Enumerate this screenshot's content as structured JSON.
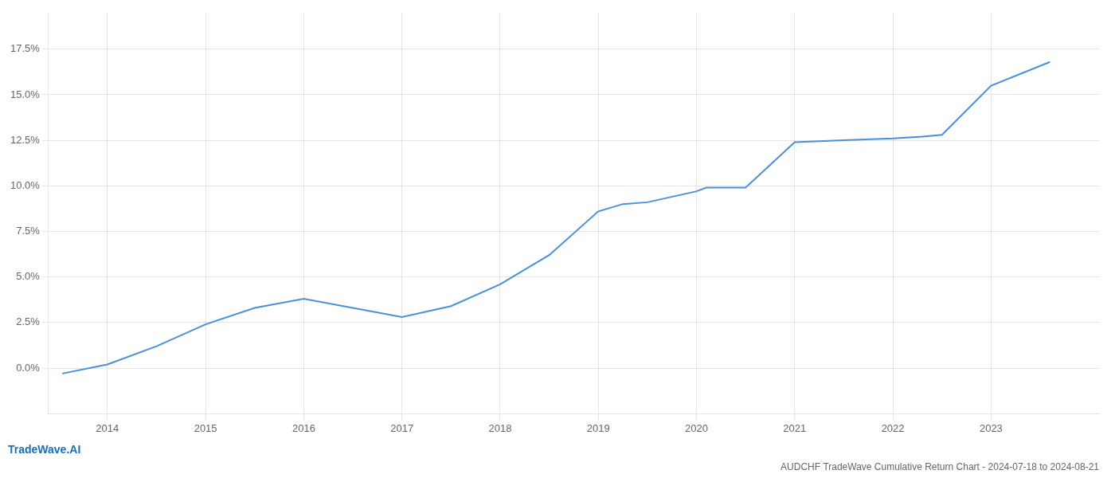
{
  "chart_data": {
    "type": "line",
    "title": "AUDCHF TradeWave Cumulative Return Chart - 2024-07-18 to 2024-08-21",
    "annotations": [
      "TradeWave.AI"
    ],
    "x": [
      2013.54,
      2014.0,
      2014.5,
      2015.0,
      2015.5,
      2016.0,
      2016.5,
      2017.0,
      2017.5,
      2018.0,
      2018.5,
      2019.0,
      2019.25,
      2019.5,
      2020.0,
      2020.1,
      2020.5,
      2021.0,
      2021.5,
      2022.0,
      2022.3,
      2022.5,
      2023.0,
      2023.6
    ],
    "values": [
      -0.003,
      0.002,
      0.012,
      0.024,
      0.033,
      0.038,
      0.033,
      0.028,
      0.034,
      0.046,
      0.062,
      0.086,
      0.09,
      0.091,
      0.097,
      0.099,
      0.099,
      0.124,
      0.125,
      0.126,
      0.127,
      0.128,
      0.155,
      0.168
    ],
    "color": "#4a90d9",
    "xlim": [
      2013.4,
      2024.1
    ],
    "ylim": [
      -0.025,
      0.195
    ],
    "xticks": [
      2014,
      2015,
      2016,
      2017,
      2018,
      2019,
      2020,
      2021,
      2022,
      2023
    ],
    "yticks": [
      {
        "value": 0.0,
        "label": "0.0%"
      },
      {
        "value": 0.025,
        "label": "2.5%"
      },
      {
        "value": 0.05,
        "label": "5.0%"
      },
      {
        "value": 0.075,
        "label": "7.5%"
      },
      {
        "value": 0.1,
        "label": "10.0%"
      },
      {
        "value": 0.125,
        "label": "12.5%"
      },
      {
        "value": 0.15,
        "label": "15.0%"
      },
      {
        "value": 0.175,
        "label": "17.5%"
      }
    ],
    "grid": true
  }
}
